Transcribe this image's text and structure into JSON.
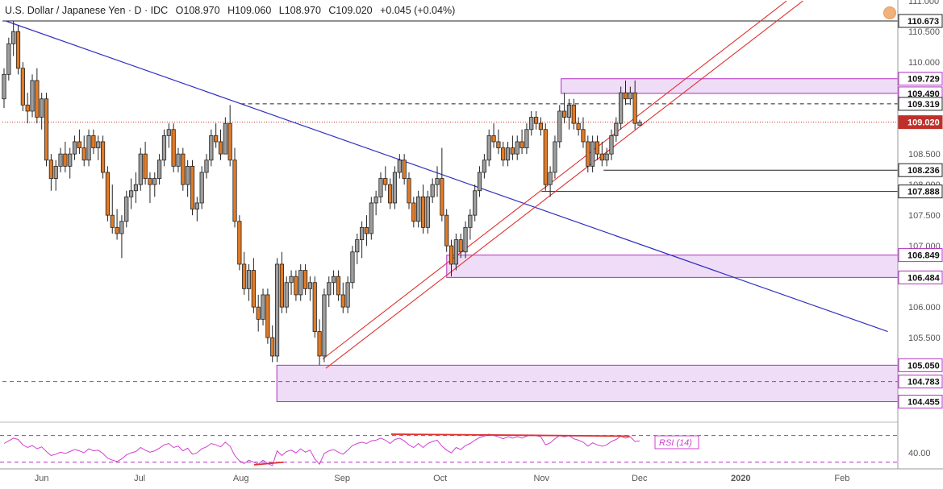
{
  "header": {
    "symbol": "U.S. Dollar / Japanese Yen · D · IDC",
    "open": "O108.970",
    "high": "H109.060",
    "low": "L108.970",
    "close": "C109.020",
    "change": "+0.045 (+0.04%)"
  },
  "colors": {
    "up_candle": "#9e9e9e",
    "down_candle": "#e07b28",
    "trendline": "#3030c0",
    "channel": "#e03030",
    "zone_fill": "#efdcf7",
    "zone_border": "#b030c0",
    "rsi_line": "#d040d0",
    "price_marker": "#c0302a"
  },
  "chart_data": [
    {
      "type": "candlestick",
      "title": "U.S. Dollar / Japanese Yen · D · IDC",
      "x_ticks": [
        "Jun",
        "Jul",
        "Aug",
        "Sep",
        "Oct",
        "Nov",
        "Dec",
        "2020",
        "Feb"
      ],
      "y_ticks": [
        "111.000",
        "110.500",
        "110.000",
        "109.500",
        "108.500",
        "108.000",
        "107.500",
        "107.000",
        "106.000",
        "105.500"
      ],
      "ylim": [
        104.2,
        111.0
      ],
      "last_price": "109.020",
      "level_labels": [
        "110.673",
        "109.729",
        "109.490",
        "109.319",
        "109.020",
        "108.236",
        "107.888",
        "106.849",
        "106.484",
        "105.050",
        "104.783",
        "104.455"
      ],
      "zones": [
        {
          "from": 109.49,
          "to": 109.729,
          "start": "Nov 7"
        },
        {
          "from": 106.484,
          "to": 106.849,
          "start": "Oct 3"
        },
        {
          "from": 104.455,
          "to": 105.05,
          "start": "Aug 12"
        }
      ],
      "horizontal_lines": [
        {
          "value": 110.673,
          "style": "solid",
          "start": "May 20"
        },
        {
          "value": 109.319,
          "style": "dashed",
          "start": "Aug 1"
        },
        {
          "value": 109.02,
          "style": "dotted",
          "start": "May 20"
        },
        {
          "value": 108.236,
          "style": "solid",
          "start": "Nov 20"
        },
        {
          "value": 107.888,
          "style": "solid",
          "start": "Nov 1"
        },
        {
          "value": 104.783,
          "style": "dashed",
          "start": "May 20"
        }
      ],
      "trendline": {
        "from": {
          "date": "May 21",
          "value": 110.673
        },
        "to": {
          "date": "Feb 15",
          "value": 105.6
        }
      },
      "channel": [
        {
          "from": {
            "date": "Aug 26",
            "value": 105.15
          },
          "to": {
            "date": "Jan 15",
            "value": 111.0
          }
        },
        {
          "from": {
            "date": "Aug 27",
            "value": 105.0
          },
          "to": {
            "date": "Jan 20",
            "value": 111.0
          }
        }
      ],
      "candles": [
        [
          109.4,
          109.9,
          109.25,
          109.8
        ],
        [
          109.8,
          110.4,
          109.7,
          110.3
        ],
        [
          110.3,
          110.67,
          110.1,
          110.5
        ],
        [
          110.5,
          110.6,
          109.8,
          109.9
        ],
        [
          109.9,
          110.0,
          109.2,
          109.3
        ],
        [
          109.3,
          109.5,
          109.0,
          109.2
        ],
        [
          109.2,
          109.8,
          109.1,
          109.7
        ],
        [
          109.7,
          109.9,
          109.0,
          109.1
        ],
        [
          109.1,
          109.5,
          108.9,
          109.4
        ],
        [
          109.4,
          109.5,
          108.3,
          108.4
        ],
        [
          108.4,
          108.5,
          107.9,
          108.1
        ],
        [
          108.1,
          108.4,
          107.9,
          108.3
        ],
        [
          108.3,
          108.6,
          108.2,
          108.5
        ],
        [
          108.5,
          108.7,
          108.2,
          108.3
        ],
        [
          108.3,
          108.6,
          108.1,
          108.5
        ],
        [
          108.5,
          108.8,
          108.4,
          108.7
        ],
        [
          108.7,
          108.9,
          108.5,
          108.6
        ],
        [
          108.6,
          108.8,
          108.3,
          108.4
        ],
        [
          108.4,
          108.9,
          108.3,
          108.8
        ],
        [
          108.8,
          108.9,
          108.5,
          108.6
        ],
        [
          108.6,
          108.8,
          108.4,
          108.7
        ],
        [
          108.7,
          108.8,
          108.1,
          108.2
        ],
        [
          108.2,
          108.3,
          107.4,
          107.5
        ],
        [
          107.5,
          108.0,
          107.2,
          107.3
        ],
        [
          107.3,
          107.6,
          107.1,
          107.2
        ],
        [
          107.2,
          107.5,
          106.8,
          107.4
        ],
        [
          107.4,
          107.9,
          107.3,
          107.8
        ],
        [
          107.8,
          108.1,
          107.6,
          107.9
        ],
        [
          107.9,
          108.2,
          107.7,
          108.0
        ],
        [
          108.0,
          108.6,
          107.9,
          108.5
        ],
        [
          108.5,
          108.7,
          108.0,
          108.1
        ],
        [
          108.1,
          108.2,
          107.7,
          108.0
        ],
        [
          108.0,
          108.2,
          107.8,
          108.1
        ],
        [
          108.1,
          108.5,
          108.0,
          108.4
        ],
        [
          108.4,
          108.9,
          108.3,
          108.8
        ],
        [
          108.8,
          109.0,
          108.6,
          108.9
        ],
        [
          108.9,
          109.0,
          108.2,
          108.3
        ],
        [
          108.3,
          108.6,
          108.2,
          108.5
        ],
        [
          108.5,
          108.6,
          107.9,
          108.0
        ],
        [
          108.0,
          108.4,
          107.8,
          108.3
        ],
        [
          108.3,
          108.4,
          107.5,
          107.6
        ],
        [
          107.6,
          107.8,
          107.4,
          107.7
        ],
        [
          107.7,
          108.3,
          107.6,
          108.2
        ],
        [
          108.2,
          108.5,
          108.1,
          108.4
        ],
        [
          108.4,
          108.9,
          108.3,
          108.8
        ],
        [
          108.8,
          109.0,
          108.6,
          108.7
        ],
        [
          108.7,
          108.9,
          108.4,
          108.5
        ],
        [
          108.5,
          109.1,
          108.5,
          109.0
        ],
        [
          109.0,
          109.3,
          108.3,
          108.4
        ],
        [
          108.4,
          108.6,
          107.3,
          107.4
        ],
        [
          107.4,
          107.5,
          106.6,
          106.7
        ],
        [
          106.7,
          106.9,
          106.2,
          106.3
        ],
        [
          106.3,
          106.7,
          106.1,
          106.6
        ],
        [
          106.6,
          106.8,
          105.9,
          106.0
        ],
        [
          106.0,
          106.2,
          105.6,
          105.8
        ],
        [
          105.8,
          106.3,
          105.7,
          106.2
        ],
        [
          106.2,
          106.3,
          105.4,
          105.5
        ],
        [
          105.5,
          105.7,
          105.1,
          105.2
        ],
        [
          105.2,
          106.8,
          105.1,
          106.7
        ],
        [
          106.7,
          106.9,
          105.9,
          106.0
        ],
        [
          106.0,
          106.5,
          105.9,
          106.4
        ],
        [
          106.4,
          106.6,
          106.2,
          106.5
        ],
        [
          106.5,
          106.6,
          106.1,
          106.2
        ],
        [
          106.2,
          106.7,
          106.1,
          106.6
        ],
        [
          106.6,
          106.7,
          106.2,
          106.3
        ],
        [
          106.3,
          106.5,
          106.1,
          106.4
        ],
        [
          106.4,
          106.5,
          105.5,
          105.6
        ],
        [
          105.6,
          105.8,
          105.05,
          105.2
        ],
        [
          105.2,
          106.3,
          105.1,
          106.2
        ],
        [
          106.2,
          106.5,
          106.0,
          106.4
        ],
        [
          106.4,
          106.6,
          106.2,
          106.5
        ],
        [
          106.5,
          106.6,
          106.1,
          106.2
        ],
        [
          106.2,
          106.4,
          105.9,
          106.0
        ],
        [
          106.0,
          106.5,
          105.9,
          106.4
        ],
        [
          106.4,
          107.0,
          106.3,
          106.9
        ],
        [
          106.9,
          107.2,
          106.7,
          107.1
        ],
        [
          107.1,
          107.4,
          106.8,
          107.3
        ],
        [
          107.3,
          107.5,
          107.0,
          107.2
        ],
        [
          107.2,
          107.8,
          107.1,
          107.7
        ],
        [
          107.7,
          107.9,
          107.5,
          107.8
        ],
        [
          107.8,
          108.2,
          107.7,
          108.1
        ],
        [
          108.1,
          108.3,
          107.9,
          108.0
        ],
        [
          108.0,
          108.1,
          107.6,
          107.7
        ],
        [
          107.7,
          108.3,
          107.6,
          108.2
        ],
        [
          108.2,
          108.5,
          108.1,
          108.4
        ],
        [
          108.4,
          108.5,
          108.0,
          108.1
        ],
        [
          108.1,
          108.2,
          107.6,
          107.7
        ],
        [
          107.7,
          107.8,
          107.3,
          107.4
        ],
        [
          107.4,
          107.9,
          107.3,
          107.8
        ],
        [
          107.8,
          108.0,
          107.2,
          107.3
        ],
        [
          107.3,
          107.9,
          107.2,
          107.8
        ],
        [
          107.8,
          108.1,
          107.7,
          108.0
        ],
        [
          108.0,
          108.3,
          107.8,
          108.1
        ],
        [
          108.1,
          108.6,
          107.4,
          107.5
        ],
        [
          107.5,
          107.6,
          106.9,
          107.0
        ],
        [
          107.0,
          107.1,
          106.5,
          106.7
        ],
        [
          106.7,
          107.2,
          106.6,
          107.1
        ],
        [
          107.1,
          107.2,
          106.8,
          106.9
        ],
        [
          106.9,
          107.4,
          106.8,
          107.3
        ],
        [
          107.3,
          107.6,
          107.1,
          107.5
        ],
        [
          107.5,
          108.0,
          107.4,
          107.9
        ],
        [
          107.9,
          108.3,
          107.8,
          108.2
        ],
        [
          108.2,
          108.5,
          108.1,
          108.4
        ],
        [
          108.4,
          108.9,
          108.3,
          108.8
        ],
        [
          108.8,
          109.0,
          108.6,
          108.7
        ],
        [
          108.7,
          108.9,
          108.5,
          108.6
        ],
        [
          108.6,
          108.7,
          108.3,
          108.4
        ],
        [
          108.4,
          108.7,
          108.3,
          108.6
        ],
        [
          108.6,
          108.8,
          108.4,
          108.5
        ],
        [
          108.5,
          108.8,
          108.4,
          108.7
        ],
        [
          108.7,
          108.9,
          108.5,
          108.6
        ],
        [
          108.6,
          109.0,
          108.5,
          108.9
        ],
        [
          108.9,
          109.2,
          108.8,
          109.1
        ],
        [
          109.1,
          109.2,
          108.9,
          109.0
        ],
        [
          109.0,
          109.1,
          108.8,
          108.9
        ],
        [
          108.9,
          109.0,
          107.9,
          108.0
        ],
        [
          108.0,
          108.3,
          107.8,
          108.2
        ],
        [
          108.2,
          108.8,
          108.1,
          108.7
        ],
        [
          108.7,
          109.3,
          108.6,
          109.2
        ],
        [
          109.2,
          109.5,
          109.0,
          109.1
        ],
        [
          109.1,
          109.4,
          108.9,
          109.3
        ],
        [
          109.3,
          109.4,
          108.9,
          109.0
        ],
        [
          109.0,
          109.1,
          108.8,
          108.9
        ],
        [
          108.9,
          109.1,
          108.6,
          108.7
        ],
        [
          108.7,
          108.8,
          108.2,
          108.3
        ],
        [
          108.3,
          108.8,
          108.2,
          108.7
        ],
        [
          108.7,
          108.8,
          108.4,
          108.5
        ],
        [
          108.5,
          108.7,
          108.3,
          108.4
        ],
        [
          108.4,
          108.6,
          108.3,
          108.5
        ],
        [
          108.5,
          108.9,
          108.4,
          108.8
        ],
        [
          108.8,
          109.1,
          108.7,
          109.0
        ],
        [
          109.0,
          109.6,
          108.9,
          109.5
        ],
        [
          109.5,
          109.7,
          109.3,
          109.4
        ],
        [
          109.4,
          109.6,
          109.3,
          109.5
        ],
        [
          109.5,
          109.7,
          108.9,
          109.0
        ],
        [
          108.97,
          109.06,
          108.97,
          109.02
        ]
      ]
    },
    {
      "type": "line",
      "title": "RSI (14)",
      "y_ticks": [
        "40.00"
      ],
      "series": [
        {
          "name": "RSI (14)",
          "values": [
            58,
            62,
            66,
            64,
            56,
            52,
            55,
            50,
            53,
            46,
            40,
            42,
            45,
            43,
            46,
            49,
            47,
            44,
            50,
            47,
            48,
            43,
            36,
            33,
            31,
            35,
            41,
            44,
            46,
            52,
            48,
            45,
            47,
            51,
            56,
            58,
            52,
            54,
            47,
            51,
            42,
            44,
            50,
            53,
            58,
            56,
            53,
            60,
            54,
            40,
            32,
            28,
            33,
            30,
            27,
            33,
            28,
            25,
            47,
            40,
            46,
            48,
            44,
            50,
            45,
            48,
            35,
            27,
            43,
            47,
            49,
            45,
            42,
            48,
            55,
            58,
            60,
            58,
            62,
            63,
            66,
            63,
            58,
            64,
            66,
            62,
            56,
            52,
            58,
            52,
            58,
            61,
            63,
            54,
            48,
            44,
            52,
            49,
            55,
            58,
            63,
            67,
            69,
            72,
            70,
            68,
            65,
            68,
            66,
            68,
            66,
            69,
            71,
            70,
            68,
            56,
            59,
            65,
            70,
            68,
            70,
            65,
            63,
            60,
            54,
            59,
            56,
            54,
            56,
            61,
            64,
            69,
            66,
            68,
            61,
            62
          ]
        }
      ],
      "ylim": [
        20,
        90
      ],
      "reference_levels": [
        30,
        70
      ],
      "divergence_lines": [
        {
          "from": {
            "date": "Sep 16",
            "value": 72
          },
          "to": {
            "date": "Nov 28",
            "value": 69
          }
        },
        {
          "from": {
            "date": "Aug 5",
            "value": 26
          },
          "to": {
            "date": "Aug 14",
            "value": 30
          }
        }
      ]
    }
  ]
}
